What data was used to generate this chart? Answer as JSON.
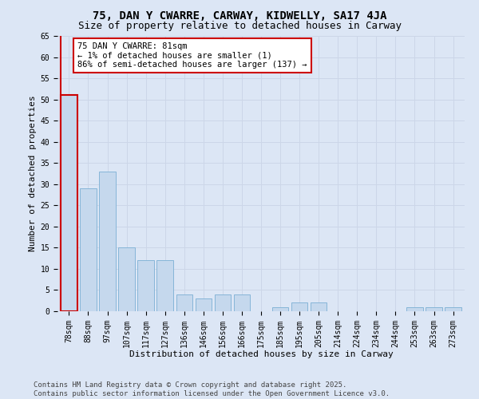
{
  "title1": "75, DAN Y CWARRE, CARWAY, KIDWELLY, SA17 4JA",
  "title2": "Size of property relative to detached houses in Carway",
  "xlabel": "Distribution of detached houses by size in Carway",
  "ylabel": "Number of detached properties",
  "categories": [
    "78sqm",
    "88sqm",
    "97sqm",
    "107sqm",
    "117sqm",
    "127sqm",
    "136sqm",
    "146sqm",
    "156sqm",
    "166sqm",
    "175sqm",
    "185sqm",
    "195sqm",
    "205sqm",
    "214sqm",
    "224sqm",
    "234sqm",
    "244sqm",
    "253sqm",
    "263sqm",
    "273sqm"
  ],
  "values": [
    51,
    29,
    33,
    15,
    12,
    12,
    4,
    3,
    4,
    4,
    0,
    1,
    2,
    2,
    0,
    0,
    0,
    0,
    1,
    1,
    1
  ],
  "bar_color": "#c5d8ed",
  "bar_edge_color": "#7bafd4",
  "highlight_bar_index": 0,
  "highlight_edge_color": "#cc0000",
  "annotation_box_text": "75 DAN Y CWARRE: 81sqm\n← 1% of detached houses are smaller (1)\n86% of semi-detached houses are larger (137) →",
  "annotation_box_color": "#ffffff",
  "annotation_box_edge_color": "#cc0000",
  "ylim": [
    0,
    65
  ],
  "yticks": [
    0,
    5,
    10,
    15,
    20,
    25,
    30,
    35,
    40,
    45,
    50,
    55,
    60,
    65
  ],
  "grid_color": "#ccd6e8",
  "background_color": "#dce6f5",
  "footer_text": "Contains HM Land Registry data © Crown copyright and database right 2025.\nContains public sector information licensed under the Open Government Licence v3.0.",
  "title_fontsize": 10,
  "subtitle_fontsize": 9,
  "axis_label_fontsize": 8,
  "tick_fontsize": 7,
  "annotation_fontsize": 7.5,
  "footer_fontsize": 6.5
}
